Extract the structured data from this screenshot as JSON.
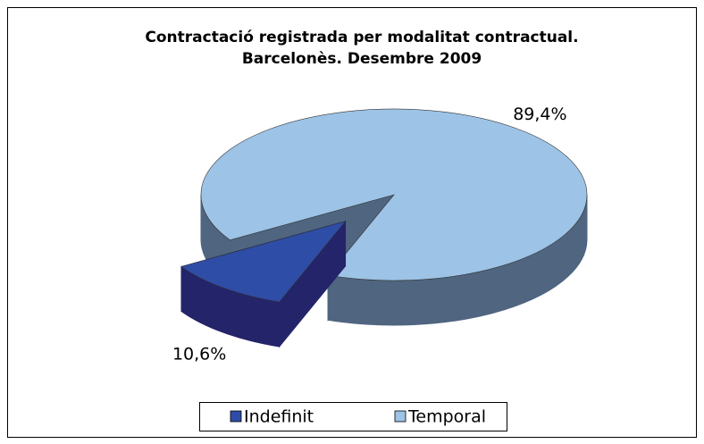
{
  "chart_data": {
    "type": "pie",
    "three_d": true,
    "title": [
      "Contractació registrada per modalitat contractual.",
      "Barcelonès. Desembre 2009"
    ],
    "categories": [
      "Indefinit",
      "Temporal"
    ],
    "values": [
      10.6,
      89.4
    ],
    "value_labels": [
      "10,6%",
      "89,4%"
    ],
    "colors": [
      "#2E4DA7",
      "#9DC3E6"
    ],
    "side_colors": [
      "#24246A",
      "#4F6580"
    ],
    "legend": "bottom"
  }
}
